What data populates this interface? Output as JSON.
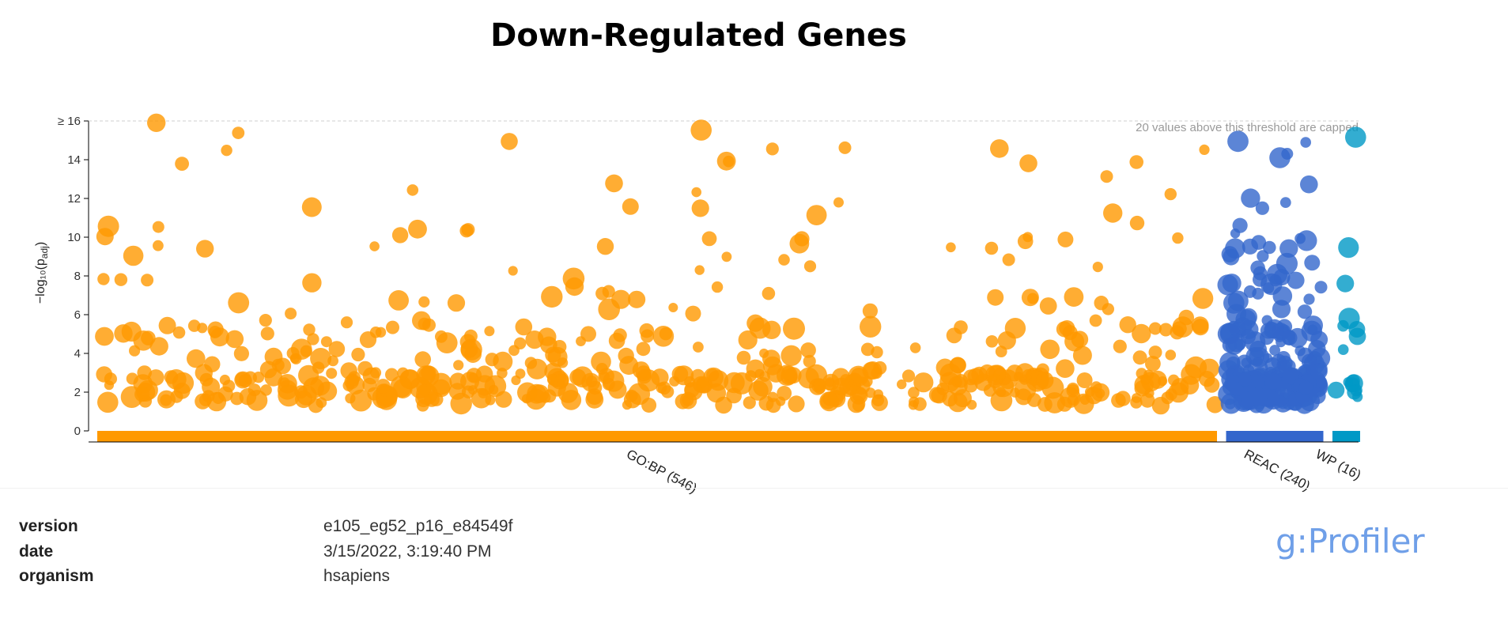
{
  "chart_data": {
    "type": "scatter",
    "title": "Down-Regulated Genes",
    "ylabel": "−log₁₀(p",
    "ylabel_sub": "adj",
    "ylabel_close": ")",
    "ylim": [
      0,
      16
    ],
    "yticks": [
      {
        "value": 0,
        "label": "0"
      },
      {
        "value": 2,
        "label": "2"
      },
      {
        "value": 4,
        "label": "4"
      },
      {
        "value": 6,
        "label": "6"
      },
      {
        "value": 8,
        "label": "8"
      },
      {
        "value": 10,
        "label": "10"
      },
      {
        "value": 12,
        "label": "12"
      },
      {
        "value": 14,
        "label": "14"
      },
      {
        "value": 16,
        "label": "≥ 16"
      }
    ],
    "cap_note": "20 values above this threshold are capped",
    "grid": false,
    "sources": [
      {
        "name": "GO:BP",
        "label": "GO:BP (546)",
        "count": 546,
        "color": "#ff9900",
        "range": [
          0,
          546
        ]
      },
      {
        "name": "REAC",
        "label": "REAC (240)",
        "count": 240,
        "color": "#3366cc",
        "range": [
          552,
          598
        ]
      },
      {
        "name": "WP",
        "label": "WP (16)",
        "count": 16,
        "color": "#0099c6",
        "range": [
          604,
          616
        ]
      }
    ]
  },
  "meta": {
    "version_key": "version",
    "version_value": "e105_eg52_p16_e84549f",
    "date_key": "date",
    "date_value": "3/15/2022, 3:19:40 PM",
    "organism_key": "organism",
    "organism_value": "hsapiens"
  },
  "brand": "g:Profiler"
}
